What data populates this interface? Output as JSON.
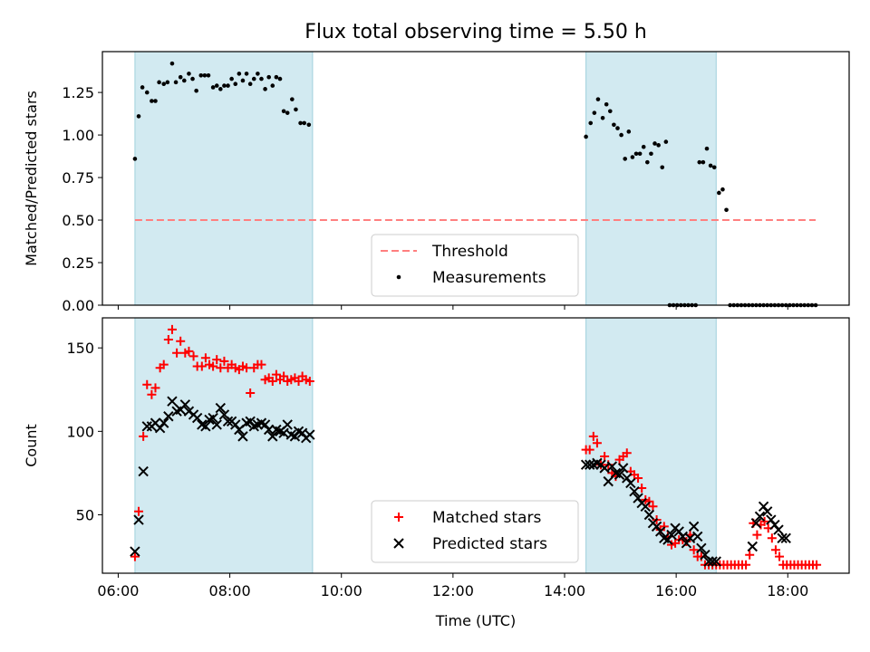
{
  "title": "Flux total observing time = 5.50 h",
  "chart_data": [
    {
      "type": "scatter",
      "panel": "top",
      "ylabel": "Matched/Predicted stars",
      "xlabel": "",
      "xlim": [
        "05:43",
        "19:06"
      ],
      "ylim": [
        0.0,
        1.49
      ],
      "yticks": [
        0.0,
        0.25,
        0.5,
        0.75,
        1.0,
        1.25
      ],
      "yticklabels": [
        "0.00",
        "0.25",
        "0.50",
        "0.75",
        "1.00",
        "1.25"
      ],
      "shaded_intervals": [
        [
          "06:18",
          "09:29"
        ],
        [
          "14:23",
          "16:43"
        ]
      ],
      "threshold": {
        "name": "Threshold",
        "value": 0.5,
        "x_range": [
          "06:18",
          "18:30"
        ],
        "color": "#ff7f7f"
      },
      "legend": {
        "position": "lower-center",
        "entries": [
          "Threshold",
          "Measurements"
        ]
      },
      "series": [
        {
          "name": "Measurements",
          "color": "#000000",
          "x": [
            "06:18",
            "06:22",
            "06:26",
            "06:31",
            "06:36",
            "06:40",
            "06:44",
            "06:49",
            "06:53",
            "06:58",
            "07:02",
            "07:07",
            "07:11",
            "07:16",
            "07:20",
            "07:24",
            "07:29",
            "07:33",
            "07:37",
            "07:42",
            "07:46",
            "07:50",
            "07:54",
            "07:58",
            "08:02",
            "08:06",
            "08:10",
            "08:14",
            "08:18",
            "08:22",
            "08:26",
            "08:30",
            "08:34",
            "08:38",
            "08:42",
            "08:46",
            "08:50",
            "08:54",
            "08:58",
            "09:02",
            "09:07",
            "09:11",
            "09:16",
            "09:20",
            "09:25",
            "14:23",
            "14:28",
            "14:32",
            "14:36",
            "14:41",
            "14:45",
            "14:49",
            "14:53",
            "14:57",
            "15:01",
            "15:05",
            "15:09",
            "15:13",
            "15:17",
            "15:21",
            "15:25",
            "15:29",
            "15:33",
            "15:37",
            "15:41",
            "15:45",
            "15:49",
            "15:53",
            "15:57",
            "16:01",
            "16:05",
            "16:09",
            "16:13",
            "16:17",
            "16:21",
            "16:25",
            "16:29",
            "16:33",
            "16:37",
            "16:41",
            "16:46",
            "16:50",
            "16:54",
            "16:58",
            "17:02",
            "17:06",
            "17:10",
            "17:14",
            "17:18",
            "17:22",
            "17:26",
            "17:30",
            "17:34",
            "17:38",
            "17:42",
            "17:46",
            "17:50",
            "17:54",
            "17:58",
            "18:02",
            "18:06",
            "18:10",
            "18:14",
            "18:18",
            "18:22",
            "18:26",
            "18:30"
          ],
          "y": [
            0.86,
            1.11,
            1.28,
            1.25,
            1.2,
            1.2,
            1.31,
            1.3,
            1.31,
            1.42,
            1.31,
            1.34,
            1.32,
            1.36,
            1.33,
            1.26,
            1.35,
            1.35,
            1.35,
            1.28,
            1.29,
            1.27,
            1.29,
            1.29,
            1.33,
            1.3,
            1.36,
            1.32,
            1.36,
            1.3,
            1.33,
            1.36,
            1.33,
            1.27,
            1.34,
            1.29,
            1.34,
            1.33,
            1.14,
            1.13,
            1.21,
            1.15,
            1.07,
            1.07,
            1.06,
            0.99,
            1.07,
            1.13,
            1.21,
            1.1,
            1.18,
            1.14,
            1.06,
            1.04,
            1.0,
            0.86,
            1.02,
            0.87,
            0.89,
            0.89,
            0.93,
            0.84,
            0.89,
            0.95,
            0.94,
            0.81,
            0.96,
            0.0,
            0.0,
            0.0,
            0.0,
            0.0,
            0.0,
            0.0,
            0.0,
            0.84,
            0.84,
            0.92,
            0.82,
            0.81,
            0.66,
            0.68,
            0.56,
            0.0,
            0.0,
            0.0,
            0.0,
            0.0,
            0.0,
            0.0,
            0.0,
            0.0,
            0.0,
            0.0,
            0.0,
            0.0,
            0.0,
            0.0,
            0.0,
            0.0,
            0.0,
            0.0,
            0.0,
            0.0,
            0.0,
            0.0,
            0.0
          ]
        }
      ]
    },
    {
      "type": "scatter",
      "panel": "bottom",
      "ylabel": "Count",
      "xlabel": "Time (UTC)",
      "xlim": [
        "05:43",
        "19:06"
      ],
      "ylim": [
        15,
        168
      ],
      "xticks": [
        "06:00",
        "08:00",
        "10:00",
        "12:00",
        "14:00",
        "16:00",
        "18:00"
      ],
      "xticklabels": [
        "06:00",
        "08:00",
        "10:00",
        "12:00",
        "14:00",
        "16:00",
        "18:00"
      ],
      "yticks": [
        50,
        100,
        150
      ],
      "yticklabels": [
        "50",
        "100",
        "150"
      ],
      "shaded_intervals": [
        [
          "06:18",
          "09:29"
        ],
        [
          "14:23",
          "16:43"
        ]
      ],
      "legend": {
        "position": "lower-center",
        "entries": [
          "Matched stars",
          "Predicted stars"
        ]
      },
      "series": [
        {
          "name": "Matched stars",
          "marker": "+",
          "color": "#ff0000",
          "x": [
            "06:18",
            "06:22",
            "06:27",
            "06:31",
            "06:36",
            "06:40",
            "06:45",
            "06:49",
            "06:54",
            "06:58",
            "07:03",
            "07:07",
            "07:12",
            "07:16",
            "07:21",
            "07:25",
            "07:30",
            "07:34",
            "07:38",
            "07:42",
            "07:46",
            "07:50",
            "07:54",
            "07:58",
            "08:02",
            "08:06",
            "08:10",
            "08:14",
            "08:18",
            "08:22",
            "08:26",
            "08:30",
            "08:34",
            "08:38",
            "08:42",
            "08:46",
            "08:50",
            "08:54",
            "08:58",
            "09:02",
            "09:06",
            "09:10",
            "09:14",
            "09:18",
            "09:22",
            "09:26",
            "14:23",
            "14:27",
            "14:31",
            "14:35",
            "14:39",
            "14:43",
            "14:47",
            "14:51",
            "14:55",
            "14:59",
            "15:03",
            "15:07",
            "15:11",
            "15:15",
            "15:19",
            "15:23",
            "15:27",
            "15:31",
            "15:35",
            "15:39",
            "15:43",
            "15:47",
            "15:51",
            "15:55",
            "15:59",
            "16:03",
            "16:07",
            "16:11",
            "16:15",
            "16:19",
            "16:23",
            "16:27",
            "16:31",
            "16:35",
            "16:39",
            "16:43",
            "16:47",
            "16:51",
            "16:55",
            "16:59",
            "17:03",
            "17:07",
            "17:11",
            "17:15",
            "17:19",
            "17:23",
            "17:27",
            "17:31",
            "17:35",
            "17:39",
            "17:43",
            "17:47",
            "17:51",
            "17:55",
            "17:59",
            "18:03",
            "18:07",
            "18:11",
            "18:15",
            "18:19",
            "18:23",
            "18:27",
            "18:31"
          ],
          "y": [
            25,
            52,
            97,
            128,
            122,
            126,
            138,
            140,
            155,
            161,
            147,
            154,
            147,
            148,
            145,
            139,
            139,
            144,
            140,
            139,
            143,
            138,
            142,
            138,
            140,
            138,
            137,
            139,
            138,
            123,
            138,
            140,
            140,
            131,
            132,
            130,
            134,
            131,
            133,
            130,
            131,
            132,
            130,
            133,
            131,
            130,
            89,
            89,
            97,
            93,
            80,
            85,
            80,
            75,
            73,
            83,
            85,
            87,
            76,
            74,
            72,
            66,
            59,
            58,
            55,
            47,
            41,
            43,
            37,
            32,
            33,
            35,
            35,
            34,
            38,
            29,
            25,
            25,
            20,
            20,
            20,
            20,
            20,
            20,
            20,
            20,
            20,
            20,
            20,
            20,
            26,
            45,
            38,
            44,
            46,
            42,
            36,
            29,
            25,
            20,
            20,
            20,
            20,
            20,
            20,
            20,
            20,
            20,
            20
          ]
        },
        {
          "name": "Predicted stars",
          "marker": "x",
          "color": "#000000",
          "x": [
            "06:18",
            "06:22",
            "06:27",
            "06:31",
            "06:36",
            "06:40",
            "06:45",
            "06:49",
            "06:54",
            "06:58",
            "07:03",
            "07:07",
            "07:12",
            "07:16",
            "07:21",
            "07:25",
            "07:30",
            "07:34",
            "07:38",
            "07:42",
            "07:46",
            "07:50",
            "07:54",
            "07:58",
            "08:02",
            "08:06",
            "08:10",
            "08:14",
            "08:18",
            "08:22",
            "08:26",
            "08:30",
            "08:34",
            "08:38",
            "08:42",
            "08:46",
            "08:50",
            "08:54",
            "08:58",
            "09:02",
            "09:06",
            "09:10",
            "09:14",
            "09:18",
            "09:22",
            "09:26",
            "14:23",
            "14:27",
            "14:31",
            "14:35",
            "14:39",
            "14:43",
            "14:47",
            "14:51",
            "14:55",
            "14:59",
            "15:03",
            "15:07",
            "15:11",
            "15:15",
            "15:19",
            "15:23",
            "15:27",
            "15:31",
            "15:35",
            "15:39",
            "15:43",
            "15:47",
            "15:51",
            "15:55",
            "15:59",
            "16:03",
            "16:07",
            "16:11",
            "16:15",
            "16:19",
            "16:23",
            "16:27",
            "16:31",
            "16:35",
            "16:39",
            "16:43",
            "17:22",
            "17:26",
            "17:30",
            "17:34",
            "17:38",
            "17:42",
            "17:46",
            "17:50",
            "17:54",
            "17:58"
          ],
          "y": [
            28,
            47,
            76,
            103,
            103,
            105,
            102,
            105,
            109,
            118,
            112,
            113,
            116,
            112,
            110,
            108,
            104,
            103,
            107,
            108,
            104,
            114,
            110,
            106,
            106,
            104,
            101,
            97,
            105,
            106,
            103,
            104,
            105,
            104,
            101,
            97,
            101,
            100,
            99,
            104,
            98,
            97,
            100,
            99,
            96,
            98,
            80,
            80,
            80,
            81,
            80,
            78,
            70,
            79,
            75,
            74,
            78,
            72,
            69,
            64,
            60,
            57,
            55,
            50,
            45,
            43,
            40,
            36,
            35,
            38,
            42,
            40,
            37,
            33,
            36,
            43,
            37,
            30,
            26,
            22,
            22,
            22,
            31,
            45,
            49,
            55,
            52,
            47,
            44,
            41,
            36,
            36
          ]
        }
      ]
    }
  ]
}
